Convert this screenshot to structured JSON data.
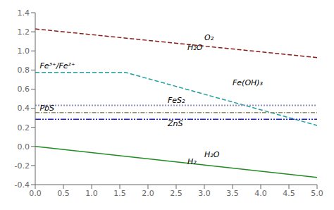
{
  "chart_data": {
    "type": "line",
    "xlim": [
      0,
      5
    ],
    "ylim": [
      -0.4,
      1.4
    ],
    "xticks": [
      {
        "value": 0,
        "label": "0.0"
      },
      0.5,
      {
        "value": 1,
        "label": "1.0"
      },
      1.5,
      {
        "value": 2,
        "label": "2.0"
      },
      2.5,
      {
        "value": 3,
        "label": "3.0"
      },
      3.5,
      {
        "value": 4,
        "label": "4.0"
      },
      4.5,
      {
        "value": 5,
        "label": "5.0"
      }
    ],
    "yticks": [
      -0.4,
      -0.2,
      {
        "value": 0,
        "label": "0.0"
      },
      0.2,
      0.4,
      0.6,
      0.8,
      {
        "value": 1.0,
        "label": "1.0"
      },
      1.2,
      1.4
    ],
    "grid": false,
    "series": [
      {
        "x": [
          0,
          5
        ],
        "values": [
          1.23,
          0.93
        ],
        "color": "#8b1a1a",
        "line_style": "dashed"
      },
      {
        "x": [
          0,
          1.6,
          5
        ],
        "values": [
          0.775,
          0.775,
          0.22
        ],
        "color": "#20a0a0",
        "line_style": "dashed"
      },
      {
        "x": [
          0,
          5
        ],
        "values": [
          0.43,
          0.43
        ],
        "color": "#9090c0",
        "line_style": "dotted"
      },
      {
        "x": [
          0,
          5
        ],
        "values": [
          0.355,
          0.355
        ],
        "color": "#909060",
        "line_style": "dashdot"
      },
      {
        "x": [
          0,
          5
        ],
        "values": [
          0.285,
          0.285
        ],
        "color": "#2222aa",
        "line_style": "dashdotdot"
      },
      {
        "x": [
          0,
          5
        ],
        "values": [
          0.0,
          -0.325
        ],
        "color": "#228b22",
        "line_style": "solid"
      }
    ],
    "annotations": [
      {
        "text": "O₂",
        "x": 3.0,
        "y": 1.115
      },
      {
        "text": "H₂O",
        "x": 2.7,
        "y": 1.01
      },
      {
        "text": "Fe³⁺/Fe²⁺",
        "x": 0.08,
        "y": 0.815
      },
      {
        "text": "Fe(OH)₃",
        "x": 3.5,
        "y": 0.64
      },
      {
        "text": "FeS₂",
        "x": 2.35,
        "y": 0.455
      },
      {
        "text": "PbS",
        "x": 0.08,
        "y": 0.372
      },
      {
        "text": "ZnS",
        "x": 2.35,
        "y": 0.21
      },
      {
        "text": "H₂O",
        "x": 3.0,
        "y": -0.115
      },
      {
        "text": "H₂",
        "x": 2.7,
        "y": -0.185
      }
    ]
  }
}
